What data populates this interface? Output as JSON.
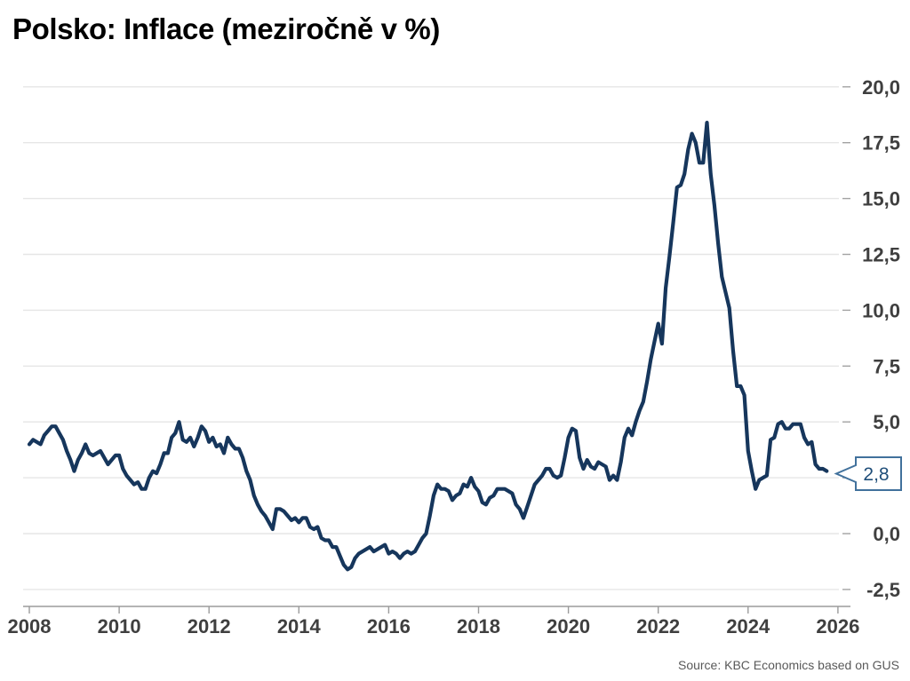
{
  "title": "Polsko: Inflace (meziročně v %)",
  "source": "Source: KBC Economics based on GUS",
  "callout": {
    "label": "2,8"
  },
  "colors": {
    "line": "#16365c",
    "grid": "#e6e6e6",
    "axis": "#9b9b9b",
    "tick": "#a3a3a3",
    "tick_label": "#3f3f3f",
    "callout_border": "#41719c",
    "callout_text": "#1f4e79",
    "title": "#000000",
    "source": "#595959"
  },
  "chart_data": {
    "type": "line",
    "title": "Polsko: Inflace (meziročně v %)",
    "xlabel": "",
    "ylabel": "",
    "xlim": [
      2008,
      2026
    ],
    "ylim": [
      -2.5,
      20.0
    ],
    "grid": "horizontal",
    "legend": "none",
    "y_ticks": [
      {
        "v": 20.0,
        "label": "20,0"
      },
      {
        "v": 17.5,
        "label": "17,5"
      },
      {
        "v": 15.0,
        "label": "15,0"
      },
      {
        "v": 12.5,
        "label": "12,5"
      },
      {
        "v": 10.0,
        "label": "10,0"
      },
      {
        "v": 7.5,
        "label": "7,5"
      },
      {
        "v": 5.0,
        "label": "5,0"
      },
      {
        "v": 2.5,
        "label": ""
      },
      {
        "v": 0.0,
        "label": "0,0"
      },
      {
        "v": -2.5,
        "label": "-2,5"
      }
    ],
    "x_ticks": [
      {
        "year": 2008,
        "label": "2008"
      },
      {
        "year": 2010,
        "label": "2010"
      },
      {
        "year": 2012,
        "label": "2012"
      },
      {
        "year": 2014,
        "label": "2014"
      },
      {
        "year": 2016,
        "label": "2016"
      },
      {
        "year": 2018,
        "label": "2018"
      },
      {
        "year": 2020,
        "label": "2020"
      },
      {
        "year": 2022,
        "label": "2022"
      },
      {
        "year": 2024,
        "label": "2024"
      },
      {
        "year": 2026,
        "label": "2026"
      }
    ],
    "series": [
      {
        "name": "Inflace (meziročně v %)",
        "start": "2008-01",
        "frequency": "monthly",
        "last_value_label": "2,8",
        "values": [
          4.0,
          4.2,
          4.1,
          4.0,
          4.4,
          4.6,
          4.8,
          4.8,
          4.5,
          4.2,
          3.7,
          3.3,
          2.8,
          3.3,
          3.6,
          4.0,
          3.6,
          3.5,
          3.6,
          3.7,
          3.4,
          3.1,
          3.3,
          3.5,
          3.5,
          2.9,
          2.6,
          2.4,
          2.2,
          2.3,
          2.0,
          2.0,
          2.5,
          2.8,
          2.7,
          3.1,
          3.6,
          3.6,
          4.3,
          4.5,
          5.0,
          4.2,
          4.1,
          4.3,
          3.9,
          4.3,
          4.8,
          4.6,
          4.1,
          4.3,
          3.9,
          4.0,
          3.6,
          4.3,
          4.0,
          3.8,
          3.8,
          3.4,
          2.8,
          2.4,
          1.7,
          1.3,
          1.0,
          0.8,
          0.5,
          0.2,
          1.1,
          1.1,
          1.0,
          0.8,
          0.6,
          0.7,
          0.5,
          0.7,
          0.7,
          0.3,
          0.2,
          0.3,
          -0.2,
          -0.3,
          -0.3,
          -0.6,
          -0.6,
          -1.0,
          -1.4,
          -1.6,
          -1.5,
          -1.1,
          -0.9,
          -0.8,
          -0.7,
          -0.6,
          -0.8,
          -0.7,
          -0.6,
          -0.5,
          -0.9,
          -0.8,
          -0.9,
          -1.1,
          -0.9,
          -0.8,
          -0.9,
          -0.8,
          -0.5,
          -0.2,
          0.0,
          0.8,
          1.7,
          2.2,
          2.0,
          2.0,
          1.9,
          1.5,
          1.7,
          1.8,
          2.2,
          2.1,
          2.5,
          2.1,
          1.9,
          1.4,
          1.3,
          1.6,
          1.7,
          2.0,
          2.0,
          2.0,
          1.9,
          1.8,
          1.3,
          1.1,
          0.7,
          1.2,
          1.7,
          2.2,
          2.4,
          2.6,
          2.9,
          2.9,
          2.6,
          2.5,
          2.6,
          3.4,
          4.3,
          4.7,
          4.6,
          3.4,
          2.9,
          3.3,
          3.0,
          2.9,
          3.2,
          3.1,
          3.0,
          2.4,
          2.6,
          2.4,
          3.2,
          4.3,
          4.7,
          4.4,
          5.0,
          5.5,
          5.9,
          6.8,
          7.8,
          8.6,
          9.4,
          8.5,
          11.0,
          12.4,
          13.9,
          15.5,
          15.6,
          16.1,
          17.2,
          17.9,
          17.5,
          16.6,
          16.6,
          18.4,
          16.1,
          14.7,
          13.0,
          11.5,
          10.8,
          10.1,
          8.2,
          6.6,
          6.6,
          6.2,
          3.7,
          2.8,
          2.0,
          2.4,
          2.5,
          2.6,
          4.2,
          4.3,
          4.9,
          5.0,
          4.7,
          4.7,
          4.9,
          4.9,
          4.9,
          4.3,
          4.0,
          4.1,
          3.1,
          2.9,
          2.9,
          2.8
        ]
      }
    ]
  }
}
